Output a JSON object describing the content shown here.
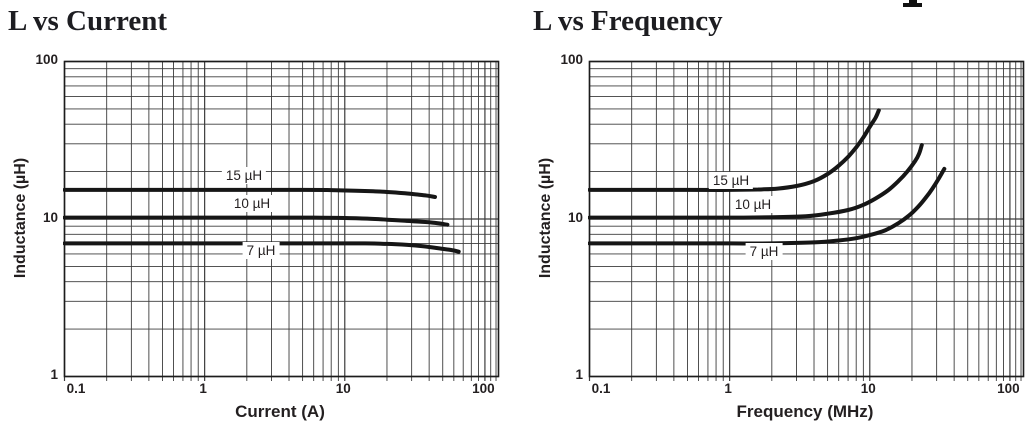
{
  "chart_data": [
    {
      "id": "l-vs-current",
      "type": "line",
      "title": "L vs Current",
      "xlabel": "Current (A)",
      "ylabel": "Inductance (µH)",
      "x_scale": "log",
      "y_scale": "log",
      "x_range": [
        0.1,
        125
      ],
      "y_range": [
        1,
        100
      ],
      "grid": "log major+minor, full rectangle border, ticks extend below axis",
      "legend_position": "inline labels above/below curves",
      "x_ticks": [
        {
          "value": 0.1,
          "label": "0.1"
        },
        {
          "value": 1,
          "label": "1"
        },
        {
          "value": 10,
          "label": "10"
        },
        {
          "value": 100,
          "label": "100"
        }
      ],
      "y_ticks": [
        {
          "value": 100,
          "label": "100"
        },
        {
          "value": 10,
          "label": "10"
        },
        {
          "value": 1,
          "label": "1"
        }
      ],
      "series": [
        {
          "name": "15 µH",
          "label": "15 µH",
          "points": [
            [
              0.1,
              15.3
            ],
            [
              2,
              15.3
            ],
            [
              5,
              15.3
            ],
            [
              8,
              15.25
            ],
            [
              12,
              15.1
            ],
            [
              16,
              15.0
            ],
            [
              20,
              14.85
            ],
            [
              26,
              14.6
            ],
            [
              33,
              14.3
            ],
            [
              39,
              14.05
            ],
            [
              44,
              13.8
            ]
          ]
        },
        {
          "name": "10 µH",
          "label": "10 µH",
          "points": [
            [
              0.1,
              10.2
            ],
            [
              2,
              10.2
            ],
            [
              6,
              10.2
            ],
            [
              10,
              10.15
            ],
            [
              15,
              10.05
            ],
            [
              20,
              9.9
            ],
            [
              27,
              9.75
            ],
            [
              35,
              9.6
            ],
            [
              44,
              9.45
            ],
            [
              54,
              9.2
            ]
          ]
        },
        {
          "name": "7 µH",
          "label": "7 µH",
          "points": [
            [
              0.1,
              7.0
            ],
            [
              3,
              7.0
            ],
            [
              8,
              7.0
            ],
            [
              14,
              7.0
            ],
            [
              20,
              6.95
            ],
            [
              28,
              6.85
            ],
            [
              37,
              6.7
            ],
            [
              48,
              6.5
            ],
            [
              58,
              6.35
            ],
            [
              65,
              6.2
            ]
          ]
        }
      ],
      "line_color": "#161616",
      "grid_color": "#3c3c3c"
    },
    {
      "id": "l-vs-frequency",
      "type": "line",
      "title": "L vs Frequency",
      "xlabel": "Frequency (MHz)",
      "ylabel": "Inductance (µH)",
      "x_scale": "log",
      "y_scale": "log",
      "x_range": [
        0.1,
        125
      ],
      "y_range": [
        1,
        100
      ],
      "grid": "log major+minor, full rectangle border, ticks extend below axis",
      "legend_position": "inline labels above/below curves",
      "x_ticks": [
        {
          "value": 0.1,
          "label": "0.1"
        },
        {
          "value": 1,
          "label": "1"
        },
        {
          "value": 10,
          "label": "10"
        },
        {
          "value": 100,
          "label": "100"
        }
      ],
      "y_ticks": [
        {
          "value": 100,
          "label": "100"
        },
        {
          "value": 10,
          "label": "10"
        },
        {
          "value": 1,
          "label": "1"
        }
      ],
      "series": [
        {
          "name": "15 µH",
          "label": "15 µH",
          "points": [
            [
              0.1,
              15.3
            ],
            [
              0.5,
              15.3
            ],
            [
              1,
              15.3
            ],
            [
              1.6,
              15.4
            ],
            [
              2.2,
              15.6
            ],
            [
              3,
              16.2
            ],
            [
              4,
              17.4
            ],
            [
              5,
              19.3
            ],
            [
              6,
              21.8
            ],
            [
              7,
              24.8
            ],
            [
              8,
              28.5
            ],
            [
              9,
              33
            ],
            [
              10,
              38.5
            ],
            [
              11,
              44
            ],
            [
              11.6,
              49
            ]
          ]
        },
        {
          "name": "10 µH",
          "label": "10 µH",
          "points": [
            [
              0.1,
              10.2
            ],
            [
              0.5,
              10.2
            ],
            [
              1,
              10.2
            ],
            [
              2,
              10.25
            ],
            [
              3.5,
              10.4
            ],
            [
              5,
              10.8
            ],
            [
              7,
              11.4
            ],
            [
              9,
              12.3
            ],
            [
              11,
              13.5
            ],
            [
              13.5,
              15.2
            ],
            [
              16,
              17.4
            ],
            [
              18.5,
              20
            ],
            [
              21,
              23.2
            ],
            [
              22.5,
              26
            ],
            [
              23.5,
              29.5
            ]
          ]
        },
        {
          "name": "7 µH",
          "label": "7 µH",
          "points": [
            [
              0.1,
              7.0
            ],
            [
              0.5,
              7.0
            ],
            [
              1,
              7.0
            ],
            [
              2,
              7.0
            ],
            [
              4,
              7.1
            ],
            [
              6,
              7.3
            ],
            [
              8,
              7.55
            ],
            [
              10,
              7.9
            ],
            [
              13,
              8.5
            ],
            [
              16,
              9.4
            ],
            [
              19,
              10.5
            ],
            [
              22,
              11.9
            ],
            [
              25,
              13.6
            ],
            [
              28,
              15.6
            ],
            [
              31,
              18
            ],
            [
              34,
              20.8
            ]
          ]
        }
      ],
      "line_color": "#161616",
      "grid_color": "#3c3c3c"
    }
  ]
}
